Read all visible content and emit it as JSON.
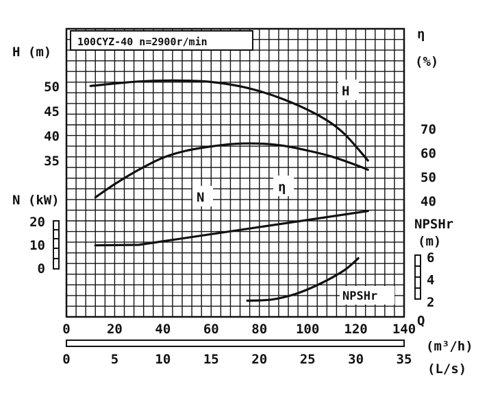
{
  "chart_data": {
    "type": "line",
    "title": "100CYZ-40 n=2900r/min",
    "xlabel": "Q",
    "x_unit_primary": "(m³/h)",
    "x_unit_secondary": "(L/s)",
    "x_ticks_primary": [
      "0",
      "20",
      "40",
      "60",
      "80",
      "100",
      "120",
      "140"
    ],
    "x_ticks_secondary": [
      "0",
      "5",
      "10",
      "15",
      "20",
      "25",
      "30",
      "35"
    ],
    "xlim": [
      0,
      140
    ],
    "grid": true,
    "axes": {
      "H": {
        "label": "H (m)",
        "ticks": [
          "35",
          "40",
          "45",
          "50"
        ],
        "ylim": [
          30,
          55
        ]
      },
      "eta": {
        "label": "η",
        "unit": "(%)",
        "ticks": [
          "40",
          "50",
          "60",
          "70"
        ],
        "ylim": [
          20,
          80
        ]
      },
      "N": {
        "label": "N (kW)",
        "ticks": [
          "0",
          "10",
          "20"
        ],
        "ylim": [
          -10,
          30
        ]
      },
      "NPSHr": {
        "label": "NPSHr",
        "unit": "(m)",
        "ticks": [
          "2",
          "4",
          "6"
        ],
        "ylim": [
          0,
          12
        ]
      }
    },
    "series": [
      {
        "name": "H",
        "axis": "H",
        "x": [
          10,
          30,
          45,
          60,
          75,
          90,
          105,
          115,
          125
        ],
        "y": [
          50.1,
          51.0,
          51.2,
          50.9,
          49.7,
          47.4,
          44.0,
          40.5,
          35.0
        ]
      },
      {
        "name": "η",
        "axis": "eta",
        "x": [
          12,
          20,
          30,
          40,
          50,
          60,
          70,
          80,
          90,
          100,
          110,
          120,
          125
        ],
        "y": [
          41.5,
          47.0,
          53.0,
          58.0,
          61.0,
          62.7,
          63.8,
          63.9,
          63.0,
          61.0,
          58.5,
          55.0,
          53.0
        ]
      },
      {
        "name": "N",
        "axis": "N",
        "x": [
          12,
          30,
          125
        ],
        "y": [
          9.8,
          10.0,
          24.5
        ]
      },
      {
        "name": "NPSHr",
        "axis": "NPSHr",
        "x": [
          75,
          85,
          95,
          105,
          115,
          121
        ],
        "y": [
          2.1,
          2.2,
          2.7,
          3.6,
          4.8,
          5.9
        ]
      }
    ]
  }
}
